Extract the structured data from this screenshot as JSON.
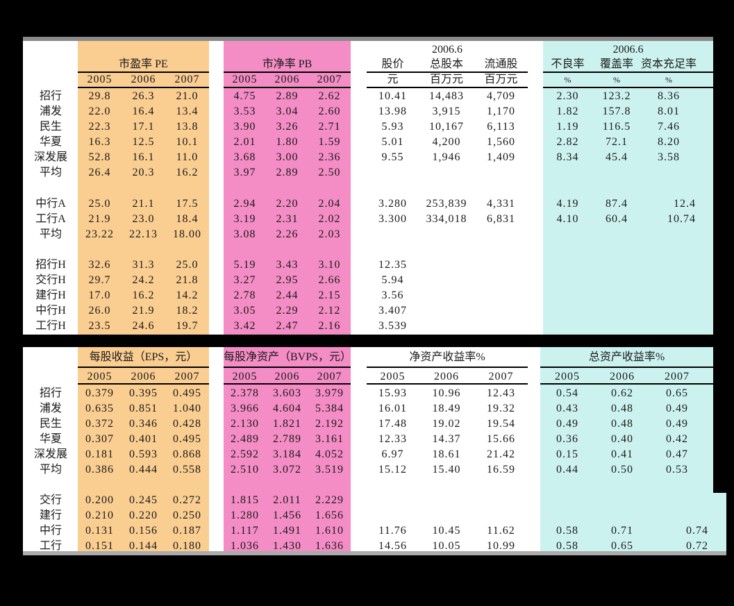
{
  "colors": {
    "orange": "#FACD91",
    "pink": "#F48CC5",
    "cyan": "#CCF2F0",
    "gray_top": "#8A8A8A",
    "gray_bottom": "#ABABAB"
  },
  "valuation_table": {
    "period_market": "2006.6",
    "period_quality": "2006.6",
    "pe_title": "市盈率 PE",
    "pb_title": "市净率 PB",
    "years": [
      "2005",
      "2006",
      "2007"
    ],
    "market_headers": [
      "股价",
      "总股本",
      "流通股"
    ],
    "market_units": [
      "元",
      "百万元",
      "百万元"
    ],
    "quality_headers": [
      "不良率",
      "覆盖率",
      "资本充足率"
    ],
    "quality_units": [
      "%",
      "%",
      "%"
    ],
    "rows": [
      {
        "label": "招行",
        "pe": [
          "29.8",
          "26.3",
          "21.0"
        ],
        "pb": [
          "4.75",
          "2.89",
          "2.62"
        ],
        "market": [
          "10.41",
          "14,483",
          "4,709"
        ],
        "quality": [
          "2.30",
          "123.2",
          "8.36"
        ]
      },
      {
        "label": "浦发",
        "pe": [
          "22.0",
          "16.4",
          "13.4"
        ],
        "pb": [
          "3.53",
          "3.04",
          "2.60"
        ],
        "market": [
          "13.98",
          "3,915",
          "1,170"
        ],
        "quality": [
          "1.82",
          "157.8",
          "8.01"
        ]
      },
      {
        "label": "民生",
        "pe": [
          "22.3",
          "17.1",
          "13.8"
        ],
        "pb": [
          "3.90",
          "3.26",
          "2.71"
        ],
        "market": [
          "5.93",
          "10,167",
          "6,113"
        ],
        "quality": [
          "1.19",
          "116.5",
          "7.46"
        ]
      },
      {
        "label": "华夏",
        "pe": [
          "16.3",
          "12.5",
          "10.1"
        ],
        "pb": [
          "2.01",
          "1.80",
          "1.59"
        ],
        "market": [
          "5.01",
          "4,200",
          "1,560"
        ],
        "quality": [
          "2.82",
          "72.1",
          "8.20"
        ]
      },
      {
        "label": "深发展",
        "pe": [
          "52.8",
          "16.1",
          "11.0"
        ],
        "pb": [
          "3.68",
          "3.00",
          "2.36"
        ],
        "market": [
          "9.55",
          "1,946",
          "1,409"
        ],
        "quality": [
          "8.34",
          "45.4",
          "3.58"
        ]
      },
      {
        "label": "平均",
        "pe": [
          "26.4",
          "20.3",
          "16.2"
        ],
        "pb": [
          "3.97",
          "2.89",
          "2.50"
        ],
        "market": [
          "",
          "",
          ""
        ],
        "quality": [
          "",
          "",
          ""
        ]
      },
      {
        "label": ""
      },
      {
        "label": "中行A",
        "pe": [
          "25.0",
          "21.1",
          "17.5"
        ],
        "pb": [
          "2.94",
          "2.20",
          "2.04"
        ],
        "market": [
          "3.280",
          "253,839",
          "4,331"
        ],
        "quality": [
          "4.19",
          "87.4",
          "12.4"
        ]
      },
      {
        "label": "工行A",
        "pe": [
          "21.9",
          "23.0",
          "18.4"
        ],
        "pb": [
          "3.19",
          "2.31",
          "2.02"
        ],
        "market": [
          "3.300",
          "334,018",
          "6,831"
        ],
        "quality": [
          "4.10",
          "60.4",
          "10.74"
        ]
      },
      {
        "label": "平均",
        "pe": [
          "23.22",
          "22.13",
          "18.00"
        ],
        "pb": [
          "3.08",
          "2.26",
          "2.03"
        ],
        "market": [
          "",
          "",
          ""
        ],
        "quality": [
          "",
          "",
          ""
        ]
      },
      {
        "label": ""
      },
      {
        "label": "招行H",
        "pe": [
          "32.6",
          "31.3",
          "25.0"
        ],
        "pb": [
          "5.19",
          "3.43",
          "3.10"
        ],
        "market": [
          "12.35",
          "",
          ""
        ],
        "quality": [
          "",
          "",
          ""
        ]
      },
      {
        "label": "交行H",
        "pe": [
          "29.7",
          "24.2",
          "21.8"
        ],
        "pb": [
          "3.27",
          "2.95",
          "2.66"
        ],
        "market": [
          "5.94",
          "",
          ""
        ],
        "quality": [
          "",
          "",
          ""
        ]
      },
      {
        "label": "建行H",
        "pe": [
          "17.0",
          "16.2",
          "14.2"
        ],
        "pb": [
          "2.78",
          "2.44",
          "2.15"
        ],
        "market": [
          "3.56",
          "",
          ""
        ],
        "quality": [
          "",
          "",
          ""
        ]
      },
      {
        "label": "中行H",
        "pe": [
          "26.0",
          "21.9",
          "18.2"
        ],
        "pb": [
          "3.05",
          "2.29",
          "2.12"
        ],
        "market": [
          "3.407",
          "",
          ""
        ],
        "quality": [
          "",
          "",
          ""
        ]
      },
      {
        "label": "工行H",
        "pe": [
          "23.5",
          "24.6",
          "19.7"
        ],
        "pb": [
          "3.42",
          "2.47",
          "2.16"
        ],
        "market": [
          "3.539",
          "",
          ""
        ],
        "quality": [
          "",
          "",
          ""
        ]
      }
    ]
  },
  "earnings_table": {
    "eps_title": "每股收益（EPS，元）",
    "bvps_title": "每股净资产（BVPS，元）",
    "roe_title": "净资产收益率%",
    "roa_title": "总资产收益率%",
    "years": [
      "2005",
      "2006",
      "2007"
    ],
    "rows": [
      {
        "label": "招行",
        "eps": [
          "0.379",
          "0.395",
          "0.495"
        ],
        "bvps": [
          "2.378",
          "3.603",
          "3.979"
        ],
        "roe": [
          "15.93",
          "10.96",
          "12.43"
        ],
        "roa": [
          "0.54",
          "0.62",
          "0.65"
        ]
      },
      {
        "label": "浦发",
        "eps": [
          "0.635",
          "0.851",
          "1.040"
        ],
        "bvps": [
          "3.966",
          "4.604",
          "5.384"
        ],
        "roe": [
          "16.01",
          "18.49",
          "19.32"
        ],
        "roa": [
          "0.43",
          "0.48",
          "0.49"
        ]
      },
      {
        "label": "民生",
        "eps": [
          "0.372",
          "0.346",
          "0.428"
        ],
        "bvps": [
          "2.130",
          "1.821",
          "2.192"
        ],
        "roe": [
          "17.48",
          "19.02",
          "19.54"
        ],
        "roa": [
          "0.49",
          "0.48",
          "0.49"
        ]
      },
      {
        "label": "华夏",
        "eps": [
          "0.307",
          "0.401",
          "0.495"
        ],
        "bvps": [
          "2.489",
          "2.789",
          "3.161"
        ],
        "roe": [
          "12.33",
          "14.37",
          "15.66"
        ],
        "roa": [
          "0.36",
          "0.40",
          "0.42"
        ]
      },
      {
        "label": "深发展",
        "eps": [
          "0.181",
          "0.593",
          "0.868"
        ],
        "bvps": [
          "2.592",
          "3.184",
          "4.052"
        ],
        "roe": [
          "6.97",
          "18.61",
          "21.42"
        ],
        "roa": [
          "0.15",
          "0.41",
          "0.47"
        ]
      },
      {
        "label": "平均",
        "eps": [
          "0.386",
          "0.444",
          "0.558"
        ],
        "bvps": [
          "2.510",
          "3.072",
          "3.519"
        ],
        "roe": [
          "15.12",
          "15.40",
          "16.59"
        ],
        "roa": [
          "0.44",
          "0.50",
          "0.53"
        ]
      },
      {
        "label": ""
      },
      {
        "label": "交行",
        "eps": [
          "0.200",
          "0.245",
          "0.272"
        ],
        "bvps": [
          "1.815",
          "2.011",
          "2.229"
        ],
        "roe": [
          "",
          "",
          ""
        ],
        "roa": [
          "",
          "",
          ""
        ]
      },
      {
        "label": "建行",
        "eps": [
          "0.210",
          "0.220",
          "0.250"
        ],
        "bvps": [
          "1.280",
          "1.456",
          "1.656"
        ],
        "roe": [
          "",
          "",
          ""
        ],
        "roa": [
          "",
          "",
          ""
        ]
      },
      {
        "label": "中行",
        "eps": [
          "0.131",
          "0.156",
          "0.187"
        ],
        "bvps": [
          "1.117",
          "1.491",
          "1.610"
        ],
        "roe": [
          "11.76",
          "10.45",
          "11.62"
        ],
        "roa": [
          "0.58",
          "0.71",
          "0.74"
        ]
      },
      {
        "label": "工行",
        "eps": [
          "0.151",
          "0.144",
          "0.180"
        ],
        "bvps": [
          "1.036",
          "1.430",
          "1.636"
        ],
        "roe": [
          "14.56",
          "10.05",
          "10.99"
        ],
        "roa": [
          "0.58",
          "0.65",
          "0.72"
        ]
      }
    ]
  }
}
